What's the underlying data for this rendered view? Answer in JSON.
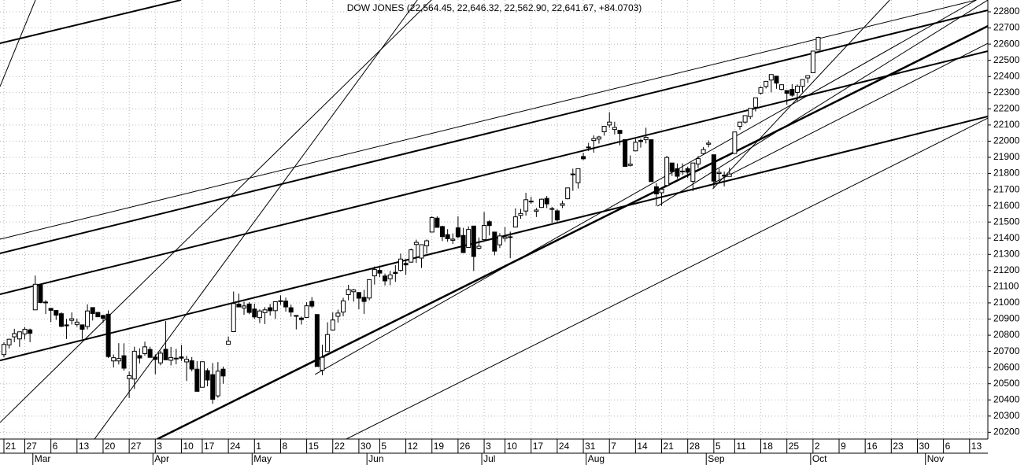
{
  "chart_data": {
    "type": "candlestick",
    "title": "DOW JONES (22,564.45, 22,646.32, 22,562.90, 22,641.67, +84.0703)",
    "open": [
      20680,
      20740,
      20790,
      20777,
      20808,
      20833,
      20957,
      21109,
      21003,
      20966,
      20953,
      20933,
      20864,
      20892,
      20867,
      20864,
      20854,
      20971,
      20941,
      20922,
      20930,
      20641,
      20641,
      20673,
      20532,
      20529,
      20674,
      20686,
      20712,
      20665,
      20629,
      20713,
      20645,
      20658,
      20666,
      20635,
      20642,
      20590,
      20478,
      20581,
      20556,
      20425,
      20590,
      20744,
      20822,
      20992,
      20968,
      20993,
      20962,
      20909,
      20940,
      20970,
      20952,
      21011,
      21011,
      20970,
      20922,
      20906,
      20910,
      21009,
      20928,
      20584,
      20699,
      20832,
      20917,
      20943,
      21051,
      21069,
      21064,
      21034,
      21030,
      21167,
      21201,
      21166,
      21149,
      21189,
      21201,
      21244,
      21252,
      21361,
      21277,
      21353,
      21438,
      21524,
      21472,
      21422,
      21387,
      21464,
      21417,
      21343,
      21475,
      21338,
      21392,
      21502,
      21438,
      21359,
      21399,
      21405,
      21469,
      21541,
      21568,
      21625,
      21566,
      21590,
      21646,
      21583,
      21569,
      21603,
      21644,
      21796,
      21743,
      21905,
      21960,
      22004,
      22013,
      22058,
      22100,
      22072,
      22067,
      22010,
      21850,
      21940,
      22004,
      22010,
      22009,
      21718,
      21681,
      21726,
      21865,
      21830,
      21815,
      21830,
      21752,
      21859,
      21923,
      21981,
      21916,
      21800,
      21790,
      21782,
      21924,
      22092,
      22118,
      22152,
      22210,
      22297,
      22338,
      22378,
      22402,
      22320,
      22313,
      22320,
      22302,
      22339,
      22391,
      22423,
      22564.45
    ],
    "high": [
      20757,
      20779,
      20840,
      20821,
      20851,
      20841,
      21169,
      21113,
      21017,
      20966,
      20955,
      20942,
      20901,
      20941,
      20902,
      20864,
      20991,
      20972,
      20941,
      20927,
      20954,
      20681,
      20751,
      20750,
      20575,
      20729,
      20719,
      20760,
      20729,
      20682,
      20704,
      20887,
      20728,
      20716,
      20740,
      20673,
      20665,
      20640,
      20637,
      20595,
      20628,
      20634,
      20606,
      20792,
      21070,
      21057,
      21007,
      21005,
      20995,
      20960,
      20974,
      20993,
      21007,
      21047,
      21033,
      20989,
      20922,
      20915,
      21004,
      21036,
      20928,
      20741,
      20880,
      20941,
      20958,
      21032,
      21112,
      21086,
      21067,
      21081,
      21144,
      21225,
      21230,
      21181,
      21197,
      21233,
      21305,
      21271,
      21336,
      21391,
      21360,
      21392,
      21536,
      21535,
      21477,
      21456,
      21430,
      21535,
      21464,
      21473,
      21475,
      21405,
      21562,
      21512,
      21438,
      21431,
      21469,
      21441,
      21585,
      21581,
      21681,
      21656,
      21587,
      21646,
      21661,
      21594,
      21580,
      21632,
      21711,
      21830,
      21830,
      21929,
      21990,
      22036,
      22033,
      22092,
      22179,
      22120,
      22067,
      22010,
      21912,
      22014,
      22016,
      22083,
      22010,
      21740,
      21704,
      21909,
      21865,
      21862,
      21863,
      21843,
      21865,
      21909,
      21964,
      22005,
      21916,
      21830,
      21812,
      21836,
      22057,
      22118,
      22158,
      22204,
      22268,
      22338,
      22371,
      22413,
      22402,
      22350,
      22313,
      22353,
      22351,
      22381,
      22405,
      22558,
      22646.32
    ],
    "low": [
      20663,
      20718,
      20757,
      20728,
      20774,
      20757,
      20957,
      20998,
      20931,
      20881,
      20895,
      20850,
      20777,
      20866,
      20853,
      20777,
      20836,
      20891,
      20914,
      20876,
      20659,
      20601,
      20619,
      20581,
      20412,
      20468,
      20625,
      20673,
      20663,
      20559,
      20614,
      20647,
      20613,
      20620,
      20641,
      20517,
      20577,
      20453,
      20478,
      20484,
      20376,
      20413,
      20500,
      20744,
      20822,
      20975,
      20926,
      20930,
      20900,
      20875,
      20869,
      20921,
      20901,
      20988,
      20946,
      20915,
      20836,
      20866,
      20910,
      20968,
      20606,
      20553,
      20699,
      20832,
      20878,
      20917,
      21016,
      21008,
      20960,
      20932,
      21016,
      21113,
      21160,
      21108,
      21109,
      21130,
      21193,
      21173,
      21249,
      21247,
      21216,
      21304,
      21438,
      21467,
      21382,
      21378,
      21364,
      21399,
      21309,
      21343,
      21197,
      21330,
      21392,
      21417,
      21294,
      21339,
      21379,
      21276,
      21469,
      21520,
      21540,
      21613,
      21531,
      21589,
      21586,
      21496,
      21502,
      21586,
      21640,
      21693,
      21707,
      21883,
      21939,
      21929,
      21985,
      22034,
      22083,
      22041,
      21974,
      21843,
      21843,
      21940,
      21960,
      21986,
      21750,
      21600,
      21600,
      21726,
      21785,
      21768,
      21791,
      21772,
      21691,
      21833,
      21915,
      21962,
      21710,
      21740,
      21720,
      21782,
      21924,
      22071,
      22108,
      22137,
      22184,
      22289,
      22326,
      22302,
      22324,
      22314,
      22225,
      22275,
      22242,
      22302,
      22360,
      22423,
      22562.9
    ],
    "close": [
      20743,
      20775,
      20810,
      20821,
      20837,
      20812,
      21115,
      21002,
      21005,
      20954,
      20924,
      20855,
      20858,
      20902,
      20881,
      20837,
      20950,
      20934,
      20914,
      20905,
      20668,
      20661,
      20656,
      20596,
      20550,
      20701,
      20659,
      20728,
      20663,
      20650,
      20689,
      20648,
      20662,
      20656,
      20658,
      20651,
      20591,
      20453,
      20636,
      20523,
      20404,
      20578,
      20548,
      20763,
      20996,
      20975,
      20981,
      20941,
      20913,
      20950,
      20957,
      20951,
      21007,
      21013,
      20975,
      20943,
      20919,
      20897,
      20982,
      20980,
      20607,
      20663,
      20804,
      20894,
      20937,
      21012,
      21082,
      21080,
      21029,
      21009,
      21144,
      21206,
      21184,
      21136,
      21173,
      21182,
      21271,
      21235,
      21328,
      21374,
      21360,
      21384,
      21528,
      21467,
      21410,
      21397,
      21394,
      21409,
      21311,
      21454,
      21287,
      21350,
      21479,
      21478,
      21320,
      21414,
      21408,
      21409,
      21532,
      21553,
      21638,
      21629,
      21574,
      21641,
      21612,
      21580,
      21513,
      21613,
      21711,
      21797,
      21830,
      21891,
      21964,
      22016,
      22026,
      22092,
      22118,
      22085,
      22048,
      21844,
      21858,
      21993,
      21998,
      22024,
      21750,
      21674,
      21703,
      21899,
      21812,
      21783,
      21814,
      21808,
      21865,
      21892,
      21948,
      21988,
      21753,
      21807,
      21784,
      21797,
      22057,
      22118,
      22158,
      22203,
      22268,
      22331,
      22370,
      22412,
      22359,
      22349,
      22296,
      22284,
      22340,
      22381,
      22405,
      22557,
      22641.67
    ],
    "up_color": "#ffffff",
    "down_color": "#000000",
    "xlim": [
      -0.75,
      188.5
    ],
    "ylim": [
      20158,
      22873
    ],
    "yticks": [
      20200,
      20300,
      20400,
      20500,
      20600,
      20700,
      20800,
      20900,
      21000,
      21100,
      21200,
      21300,
      21400,
      21500,
      21600,
      21700,
      21800,
      21900,
      22000,
      22100,
      22200,
      22300,
      22400,
      22500,
      22600,
      22700,
      22800
    ],
    "xticks": [
      {
        "value": 0,
        "label": "21"
      },
      {
        "value": 4,
        "label": "27"
      },
      {
        "value": 9,
        "label": "6"
      },
      {
        "value": 14,
        "label": "13"
      },
      {
        "value": 19,
        "label": "20"
      },
      {
        "value": 24,
        "label": "27"
      },
      {
        "value": 29,
        "label": "3"
      },
      {
        "value": 34,
        "label": "10"
      },
      {
        "value": 38,
        "label": "17"
      },
      {
        "value": 43,
        "label": "24"
      },
      {
        "value": 48,
        "label": "1"
      },
      {
        "value": 53,
        "label": "8"
      },
      {
        "value": 58,
        "label": "15"
      },
      {
        "value": 63,
        "label": "22"
      },
      {
        "value": 68,
        "label": "30"
      },
      {
        "value": 72,
        "label": "5"
      },
      {
        "value": 77,
        "label": "12"
      },
      {
        "value": 82,
        "label": "19"
      },
      {
        "value": 87,
        "label": "26"
      },
      {
        "value": 92,
        "label": "3"
      },
      {
        "value": 96,
        "label": "10"
      },
      {
        "value": 101,
        "label": "17"
      },
      {
        "value": 106,
        "label": "24"
      },
      {
        "value": 111,
        "label": "31"
      },
      {
        "value": 116,
        "label": "7"
      },
      {
        "value": 121,
        "label": "14"
      },
      {
        "value": 126,
        "label": "21"
      },
      {
        "value": 131,
        "label": "28"
      },
      {
        "value": 136,
        "label": "5"
      },
      {
        "value": 140,
        "label": "11"
      },
      {
        "value": 145,
        "label": "18"
      },
      {
        "value": 150,
        "label": "25"
      },
      {
        "value": 155,
        "label": "2"
      },
      {
        "value": 160,
        "label": "9"
      },
      {
        "value": 165,
        "label": "16"
      },
      {
        "value": 170,
        "label": "23"
      },
      {
        "value": 175,
        "label": "30"
      },
      {
        "value": 180,
        "label": "6"
      },
      {
        "value": 185,
        "label": "13"
      }
    ],
    "month_ticks": [
      {
        "value": 6,
        "label": "Mar"
      },
      {
        "value": 29,
        "label": "Apr"
      },
      {
        "value": 48,
        "label": "May"
      },
      {
        "value": 70,
        "label": "Jun"
      },
      {
        "value": 92,
        "label": "Jul"
      },
      {
        "value": 112,
        "label": "Aug"
      },
      {
        "value": 135,
        "label": "Sep"
      },
      {
        "value": 155,
        "label": "Oct"
      },
      {
        "value": 177,
        "label": "Nov"
      }
    ],
    "grid": true,
    "trendlines": [
      {
        "x": [
          29.4,
          188.5
        ],
        "y": [
          20158,
          22712
        ],
        "width": 2.5
      },
      {
        "x": [
          -0.75,
          188.5
        ],
        "y": [
          20644,
          22153
        ],
        "width": 2
      },
      {
        "x": [
          -0.75,
          188.5
        ],
        "y": [
          21053,
          22557
        ],
        "width": 2
      },
      {
        "x": [
          -0.75,
          188.5
        ],
        "y": [
          21306,
          22810
        ],
        "width": 2
      },
      {
        "x": [
          -0.75,
          33.9
        ],
        "y": [
          22605,
          22873
        ],
        "width": 2
      },
      {
        "x": [
          -0.75,
          186.3
        ],
        "y": [
          21394,
          22873
        ],
        "width": 1
      },
      {
        "x": [
          -0.75,
          81.9
        ],
        "y": [
          20260,
          22873
        ],
        "width": 1
      },
      {
        "x": [
          -0.75,
          6.04
        ],
        "y": [
          22338,
          22873
        ],
        "width": 1
      },
      {
        "x": [
          17.35,
          79.2
        ],
        "y": [
          20158,
          22873
        ],
        "width": 1
      },
      {
        "x": [
          59.6,
          186.3
        ],
        "y": [
          20557,
          22873
        ],
        "width": 1
      },
      {
        "x": [
          65.6,
          188.5
        ],
        "y": [
          20158,
          22143
        ],
        "width": 1
      },
      {
        "x": [
          125.2,
          188.5
        ],
        "y": [
          21598,
          22873
        ],
        "width": 1
      },
      {
        "x": [
          135.8,
          188.5
        ],
        "y": [
          21739,
          22605
        ],
        "width": 1
      },
      {
        "x": [
          135.8,
          169.7
        ],
        "y": [
          21705,
          22873
        ],
        "width": 1
      }
    ]
  }
}
